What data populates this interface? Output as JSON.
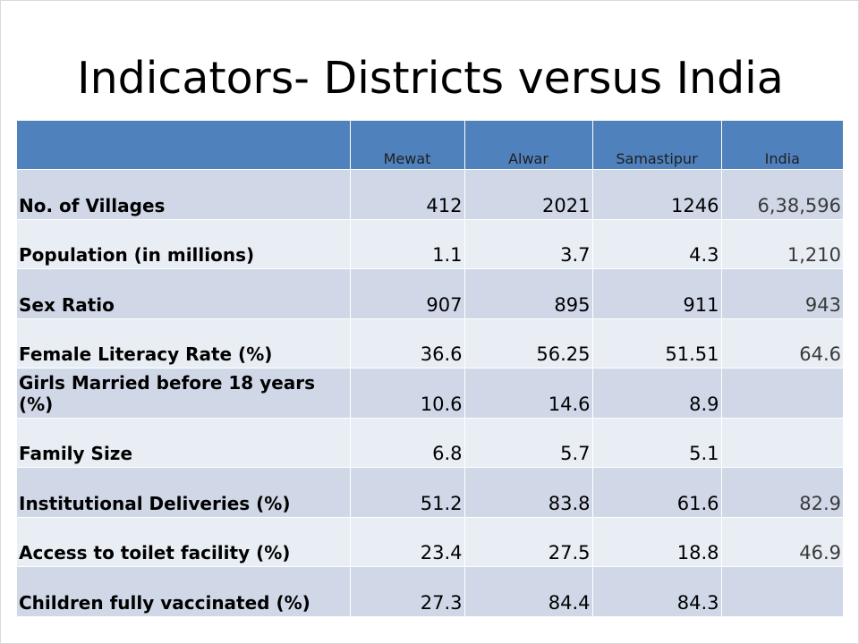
{
  "slide": {
    "title": "Indicators- Districts versus India"
  },
  "table": {
    "headers": [
      "",
      "Mewat",
      "Alwar",
      "Samastipur",
      "India"
    ],
    "rows": [
      {
        "label": "No. of Villages",
        "values": [
          "412",
          "2021",
          "1246",
          "6,38,596"
        ]
      },
      {
        "label": "Population (in millions)",
        "values": [
          "1.1",
          "3.7",
          "4.3",
          "1,210"
        ]
      },
      {
        "label": "Sex Ratio",
        "values": [
          "907",
          "895",
          "911",
          "943"
        ]
      },
      {
        "label": "Female Literacy Rate (%)",
        "values": [
          "36.6",
          "56.25",
          "51.51",
          "64.6"
        ]
      },
      {
        "label": "Girls Married before 18 years (%)",
        "values": [
          "10.6",
          "14.6",
          "8.9",
          ""
        ]
      },
      {
        "label": "Family Size",
        "values": [
          "6.8",
          "5.7",
          "5.1",
          ""
        ]
      },
      {
        "label": "Institutional Deliveries (%)",
        "values": [
          "51.2",
          "83.8",
          "61.6",
          "82.9"
        ]
      },
      {
        "label": "Access to toilet facility (%)",
        "values": [
          "23.4",
          "27.5",
          "18.8",
          "46.9"
        ]
      },
      {
        "label": "Children fully vaccinated (%)",
        "values": [
          "27.3",
          "84.4",
          "84.3",
          ""
        ]
      }
    ]
  },
  "colors": {
    "header_bg": "#4f81bd",
    "row_dark": "#d0d8e8",
    "row_light": "#e9edf4"
  }
}
